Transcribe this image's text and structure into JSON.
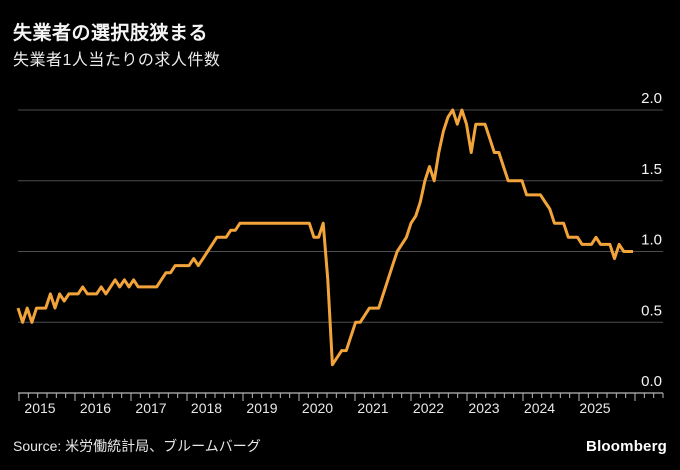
{
  "header": {
    "title": "失業者の選択肢狭まる",
    "subtitle": "失業者1人当たりの求人件数"
  },
  "footer": {
    "source": "Source: 米労働統計局、ブルームバーグ",
    "brand": "Bloomberg"
  },
  "colors": {
    "background": "#000000",
    "line": "#F2A43A",
    "grid": "#4d4d4d",
    "axis": "#b8b8b8",
    "tick_label": "#e8e8e8",
    "text": "#f5f5f5"
  },
  "chart_data": {
    "type": "line",
    "title": "失業者の選択肢狭まる",
    "subtitle": "失業者1人当たりの求人件数",
    "x_unit": "month",
    "x_start": "2014-08",
    "x_end": "2025-09",
    "x_tick_labels": [
      "2015",
      "2016",
      "2017",
      "2018",
      "2019",
      "2020",
      "2021",
      "2022",
      "2023",
      "2024",
      "2025"
    ],
    "y_ticks": [
      "0.0",
      "0.5",
      "1.0",
      "1.5",
      "2.0"
    ],
    "ylim": [
      0,
      2.15
    ],
    "grid": true,
    "legend": false,
    "line_color": "#F2A43A",
    "series": [
      {
        "name": "失業者1人当たりの求人件数",
        "values": [
          0.6,
          0.5,
          0.6,
          0.5,
          0.6,
          0.6,
          0.6,
          0.7,
          0.6,
          0.7,
          0.65,
          0.7,
          0.7,
          0.7,
          0.75,
          0.7,
          0.7,
          0.7,
          0.75,
          0.7,
          0.75,
          0.8,
          0.75,
          0.8,
          0.75,
          0.8,
          0.75,
          0.75,
          0.75,
          0.75,
          0.75,
          0.8,
          0.85,
          0.85,
          0.9,
          0.9,
          0.9,
          0.9,
          0.95,
          0.9,
          0.95,
          1.0,
          1.05,
          1.1,
          1.1,
          1.1,
          1.15,
          1.15,
          1.2,
          1.2,
          1.2,
          1.2,
          1.2,
          1.2,
          1.2,
          1.2,
          1.2,
          1.2,
          1.2,
          1.2,
          1.2,
          1.2,
          1.2,
          1.2,
          1.1,
          1.1,
          1.2,
          0.8,
          0.2,
          0.25,
          0.3,
          0.3,
          0.4,
          0.5,
          0.5,
          0.55,
          0.6,
          0.6,
          0.6,
          0.7,
          0.8,
          0.9,
          1.0,
          1.05,
          1.1,
          1.2,
          1.25,
          1.35,
          1.5,
          1.6,
          1.5,
          1.7,
          1.85,
          1.95,
          2.0,
          1.9,
          2.0,
          1.9,
          1.7,
          1.9,
          1.9,
          1.9,
          1.8,
          1.7,
          1.7,
          1.6,
          1.5,
          1.5,
          1.5,
          1.5,
          1.4,
          1.4,
          1.4,
          1.4,
          1.35,
          1.3,
          1.2,
          1.2,
          1.2,
          1.1,
          1.1,
          1.1,
          1.05,
          1.05,
          1.05,
          1.1,
          1.05,
          1.05,
          1.05,
          0.95,
          1.05,
          1.0,
          1.0,
          1.0
        ]
      }
    ]
  }
}
